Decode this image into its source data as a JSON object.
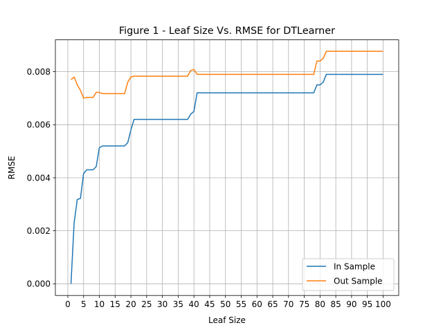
{
  "chart_data": {
    "type": "line",
    "title": "Figure 1 - Leaf Size Vs. RMSE for DTLearner",
    "xlabel": "Leaf Size",
    "ylabel": "RMSE",
    "xlim": [
      -3.95,
      104.95
    ],
    "ylim": [
      -0.00044,
      0.0092
    ],
    "xticks": [
      0,
      5,
      10,
      15,
      20,
      25,
      30,
      35,
      40,
      45,
      50,
      55,
      60,
      65,
      70,
      75,
      80,
      85,
      90,
      95,
      100
    ],
    "yticks": [
      0.0,
      0.002,
      0.004,
      0.006,
      0.008
    ],
    "ytick_labels": [
      "0.000",
      "0.002",
      "0.004",
      "0.006",
      "0.008"
    ],
    "grid": true,
    "legend_position": "lower right",
    "series": [
      {
        "name": "In Sample",
        "color": "#1f77b4",
        "x": [
          1,
          2,
          3,
          4,
          5,
          6,
          7,
          8,
          9,
          10,
          11,
          12,
          13,
          14,
          15,
          16,
          17,
          18,
          19,
          20,
          21,
          22,
          23,
          24,
          25,
          26,
          27,
          28,
          29,
          30,
          31,
          32,
          33,
          34,
          35,
          36,
          37,
          38,
          39,
          40,
          41,
          42,
          43,
          44,
          45,
          50,
          55,
          60,
          65,
          70,
          75,
          78,
          79,
          80,
          81,
          82,
          83,
          85,
          90,
          95,
          100
        ],
        "values": [
          0.0,
          0.0023,
          0.00318,
          0.00322,
          0.00416,
          0.0043,
          0.0043,
          0.0043,
          0.00442,
          0.00513,
          0.0052,
          0.0052,
          0.0052,
          0.0052,
          0.0052,
          0.0052,
          0.0052,
          0.0052,
          0.00532,
          0.0058,
          0.0062,
          0.0062,
          0.0062,
          0.0062,
          0.0062,
          0.0062,
          0.0062,
          0.0062,
          0.0062,
          0.0062,
          0.0062,
          0.0062,
          0.0062,
          0.0062,
          0.0062,
          0.0062,
          0.0062,
          0.0062,
          0.0064,
          0.0065,
          0.0072,
          0.0072,
          0.0072,
          0.0072,
          0.0072,
          0.0072,
          0.0072,
          0.0072,
          0.0072,
          0.0072,
          0.0072,
          0.0072,
          0.0075,
          0.0075,
          0.0076,
          0.0079,
          0.0079,
          0.0079,
          0.0079,
          0.0079,
          0.0079
        ]
      },
      {
        "name": "Out Sample",
        "color": "#ff7f0e",
        "x": [
          1,
          2,
          3,
          4,
          5,
          6,
          7,
          8,
          9,
          10,
          11,
          12,
          13,
          14,
          15,
          16,
          17,
          18,
          19,
          20,
          21,
          22,
          23,
          24,
          25,
          30,
          35,
          38,
          39,
          40,
          41,
          42,
          45,
          50,
          55,
          60,
          65,
          70,
          75,
          78,
          79,
          80,
          81,
          82,
          83,
          85,
          90,
          95,
          100
        ],
        "values": [
          0.0077,
          0.0078,
          0.0075,
          0.0073,
          0.007,
          0.00703,
          0.00703,
          0.00703,
          0.00722,
          0.00722,
          0.00717,
          0.00717,
          0.00717,
          0.00717,
          0.00717,
          0.00717,
          0.00717,
          0.00717,
          0.0076,
          0.0078,
          0.00783,
          0.00783,
          0.00783,
          0.00783,
          0.00783,
          0.00783,
          0.00783,
          0.00783,
          0.00805,
          0.00808,
          0.0079,
          0.0079,
          0.0079,
          0.0079,
          0.0079,
          0.0079,
          0.0079,
          0.0079,
          0.0079,
          0.0079,
          0.0084,
          0.0084,
          0.0085,
          0.00877,
          0.00877,
          0.00877,
          0.00877,
          0.00877,
          0.00877
        ]
      }
    ]
  }
}
